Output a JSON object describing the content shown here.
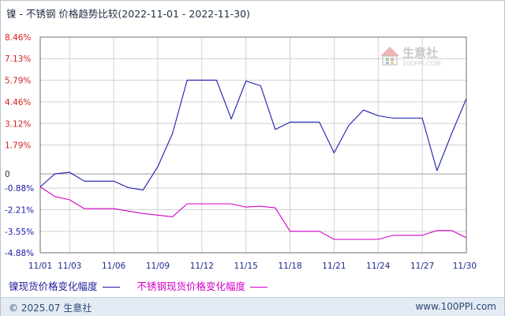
{
  "title": "镍 - 不锈钢 价格趋势比较(2022-11-01 - 2022-11-30)",
  "watermark": {
    "brand": "生意社",
    "url": "100PPI.COM"
  },
  "footer": {
    "copyright": "© 2025.07 生意社",
    "site": "www.100PPI.com"
  },
  "colors": {
    "nickel": "#1c1cae",
    "stainless": "#d400c8",
    "pos_tick": "#d42020",
    "neg_tick": "#1b1ba8",
    "grid": "#d0d0d0"
  },
  "chart_data": {
    "type": "line",
    "x": [
      "11/01",
      "11/02",
      "11/03",
      "11/04",
      "11/05",
      "11/06",
      "11/07",
      "11/08",
      "11/09",
      "11/10",
      "11/11",
      "11/12",
      "11/13",
      "11/14",
      "11/15",
      "11/16",
      "11/17",
      "11/18",
      "11/19",
      "11/20",
      "11/21",
      "11/22",
      "11/23",
      "11/24",
      "11/25",
      "11/26",
      "11/27",
      "11/28",
      "11/29",
      "11/30"
    ],
    "x_ticks": [
      "11/01",
      "11/03",
      "11/06",
      "11/09",
      "11/12",
      "11/15",
      "11/18",
      "11/21",
      "11/24",
      "11/27",
      "11/30"
    ],
    "y_ticks": [
      "8.46%",
      "7.13%",
      "5.79%",
      "4.46%",
      "3.12%",
      "1.79%",
      "0",
      "-0.88%",
      "-2.21%",
      "-3.55%",
      "-4.88%"
    ],
    "y_tick_values": [
      8.46,
      7.13,
      5.79,
      4.46,
      3.12,
      1.79,
      0,
      -0.88,
      -2.21,
      -3.55,
      -4.88
    ],
    "ylim": [
      -4.88,
      8.46
    ],
    "grid": true,
    "legend_position": "bottom-left",
    "series": [
      {
        "name": "镍现货价格变化幅度",
        "values": [
          -0.8,
          0.0,
          0.1,
          -0.45,
          -0.45,
          -0.45,
          -0.85,
          -1.0,
          0.45,
          2.5,
          5.8,
          5.8,
          5.8,
          3.4,
          5.75,
          5.45,
          2.75,
          3.2,
          3.2,
          3.2,
          1.3,
          3.0,
          3.95,
          3.6,
          3.45,
          3.45,
          3.45,
          0.2,
          2.5,
          4.65
        ]
      },
      {
        "name": "不锈钢现货价格变化幅度",
        "values": [
          -0.8,
          -1.4,
          -1.6,
          -2.15,
          -2.15,
          -2.15,
          -2.3,
          -2.45,
          -2.55,
          -2.65,
          -1.85,
          -1.85,
          -1.85,
          -1.85,
          -2.05,
          -2.0,
          -2.1,
          -3.55,
          -3.55,
          -3.55,
          -4.05,
          -4.05,
          -4.05,
          -4.05,
          -3.8,
          -3.8,
          -3.8,
          -3.5,
          -3.5,
          -3.95
        ]
      }
    ]
  }
}
